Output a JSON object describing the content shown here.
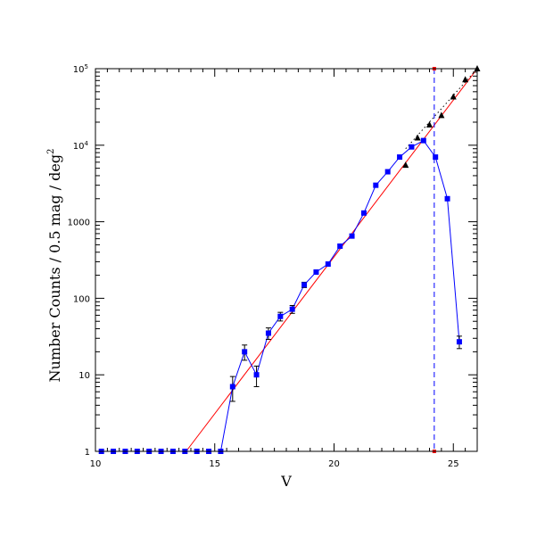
{
  "chart_data": {
    "type": "scatter",
    "title": "",
    "xlabel": "V",
    "ylabel": "Number Counts / 0.5 mag / deg",
    "ylabel_superscript": "2",
    "x_scale": "linear",
    "y_scale": "log",
    "xlim": [
      10,
      26
    ],
    "ylim": [
      1,
      100000
    ],
    "x_ticks": [
      10,
      15,
      20,
      25
    ],
    "y_ticks": [
      {
        "value": 1,
        "label": "1"
      },
      {
        "value": 10,
        "label": "10"
      },
      {
        "value": 100,
        "label": "100"
      },
      {
        "value": 1000,
        "label": "1000"
      },
      {
        "value": 10000,
        "label": "10",
        "exp": "4"
      },
      {
        "value": 100000,
        "label": "10",
        "exp": "5"
      }
    ],
    "series": [
      {
        "color": "#0000ff",
        "marker": "square",
        "connected": true,
        "x": [
          10.25,
          10.75,
          11.25,
          11.75,
          12.25,
          12.75,
          13.25,
          13.75,
          14.25,
          14.75,
          15.25,
          15.75,
          16.25,
          16.75,
          17.25,
          17.75,
          18.25,
          18.75,
          19.25,
          19.75,
          20.25,
          20.75,
          21.25,
          21.75,
          22.25,
          22.75,
          23.25,
          23.75,
          24.25,
          24.75,
          25.25
        ],
        "y": [
          1,
          1,
          1,
          1,
          1,
          1,
          1,
          1,
          1,
          1,
          1,
          7,
          20,
          10,
          35,
          58,
          72,
          150,
          220,
          280,
          480,
          650,
          1300,
          3000,
          4500,
          7000,
          9500,
          11500,
          7000,
          2000,
          27
        ],
        "err_low": [
          0,
          0,
          0,
          0,
          0,
          0,
          0,
          0,
          0,
          0,
          0,
          2.5,
          4.5,
          3,
          6,
          7.5,
          8.5,
          12,
          0,
          0,
          0,
          0,
          0,
          0,
          0,
          0,
          0,
          0,
          0,
          0,
          5
        ],
        "err_high": [
          0,
          0,
          0,
          0,
          0,
          0,
          0,
          0,
          0,
          0,
          0,
          2.5,
          4.5,
          3,
          6,
          7.5,
          8.5,
          12,
          0,
          0,
          0,
          0,
          0,
          0,
          0,
          0,
          0,
          0,
          0,
          0,
          5
        ]
      },
      {
        "color": "#000000",
        "marker": "triangle",
        "connected": false,
        "x": [
          23.0,
          23.5,
          24.0,
          24.5,
          25.0,
          25.5,
          26.0
        ],
        "y": [
          5500,
          12500,
          18500,
          24500,
          43000,
          72000,
          100000
        ]
      }
    ],
    "fit_lines": [
      {
        "color": "#ff0000",
        "style": "solid",
        "x": [
          13.8,
          26.0
        ],
        "y": [
          1,
          100000
        ]
      },
      {
        "color": "#000000",
        "style": "dotted",
        "x": [
          23.0,
          26.0
        ],
        "y": [
          9000,
          100000
        ]
      }
    ],
    "vertical_lines": [
      {
        "color": "#0000ff",
        "style": "dashed",
        "x": 24.2
      }
    ],
    "grid": false,
    "legend": "none"
  }
}
